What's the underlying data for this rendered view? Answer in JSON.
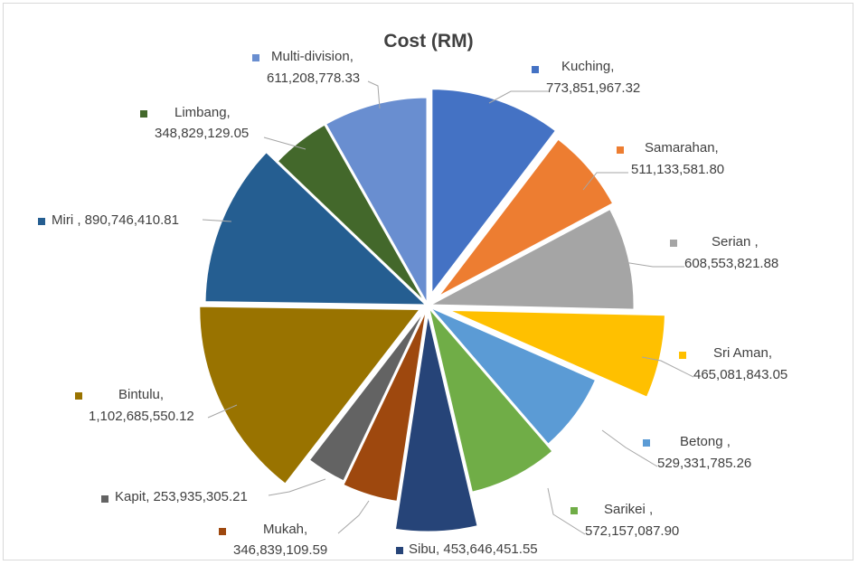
{
  "chart_data": {
    "type": "pie",
    "title": "Cost (RM)",
    "slices": [
      {
        "name": "Kuching",
        "display_name": "Kuching,",
        "value": 773851967.32,
        "value_label": "773,851,967.32",
        "color": "#4472c4"
      },
      {
        "name": "Samarahan",
        "display_name": "Samarahan,",
        "value": 511133581.8,
        "value_label": "511,133,581.80",
        "color": "#ed7d31"
      },
      {
        "name": "Serian",
        "display_name": "Serian ,",
        "value": 608553821.88,
        "value_label": "608,553,821.88",
        "color": "#a5a5a5"
      },
      {
        "name": "Sri Aman",
        "display_name": "Sri Aman,",
        "value": 465081843.05,
        "value_label": "465,081,843.05",
        "color": "#ffc000"
      },
      {
        "name": "Betong",
        "display_name": "Betong ,",
        "value": 529331785.26,
        "value_label": "529,331,785.26",
        "color": "#5b9bd5"
      },
      {
        "name": "Sarikei",
        "display_name": "Sarikei ,",
        "value": 572157087.9,
        "value_label": "572,157,087.90",
        "color": "#70ad47"
      },
      {
        "name": "Sibu",
        "display_name": "Sibu,",
        "value": 453646451.55,
        "value_label": "453,646,451.55",
        "color": "#264478"
      },
      {
        "name": "Mukah",
        "display_name": "Mukah,",
        "value": 346839109.59,
        "value_label": "346,839,109.59",
        "color": "#9e480e"
      },
      {
        "name": "Kapit",
        "display_name": "Kapit,",
        "value": 253935305.21,
        "value_label": "253,935,305.21",
        "color": "#636363"
      },
      {
        "name": "Bintulu",
        "display_name": "Bintulu,",
        "value": 1102685550.12,
        "value_label": "1,102,685,550.12",
        "color": "#997300"
      },
      {
        "name": "Miri",
        "display_name": "Miri ,",
        "value": 890746410.81,
        "value_label": "890,746,410.81",
        "color": "#255e91"
      },
      {
        "name": "Limbang",
        "display_name": "Limbang,",
        "value": 348829129.05,
        "value_label": "348,829,129.05",
        "color": "#43682b"
      },
      {
        "name": "Multi-division",
        "display_name": "Multi-division,",
        "value": 611208778.33,
        "value_label": "611,208,778.33",
        "color": "#698ed0"
      }
    ]
  }
}
